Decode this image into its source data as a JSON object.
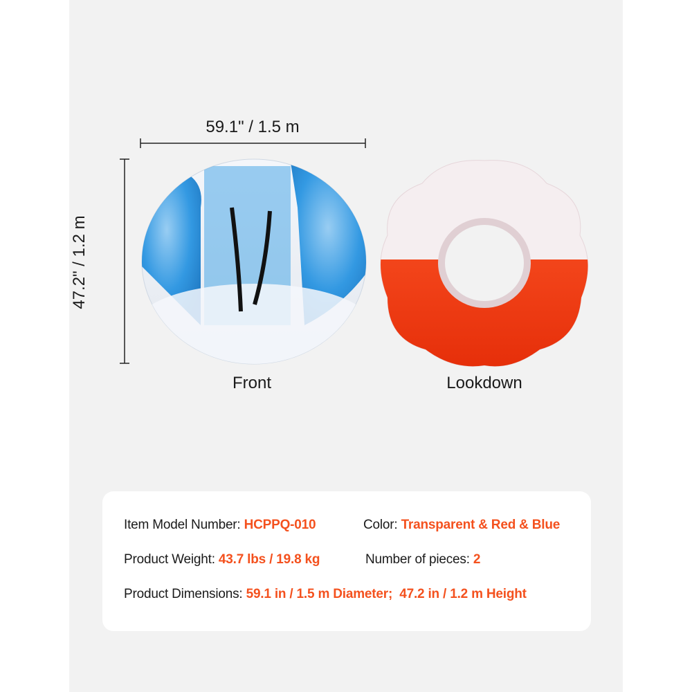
{
  "dimensions": {
    "width_label": "59.1\" / 1.5 m",
    "height_label": "47.2\" / 1.2 m"
  },
  "views": [
    {
      "caption": "Front"
    },
    {
      "caption": "Lookdown"
    }
  ],
  "colors": {
    "accent": "#f4511e",
    "blue": "#1e8fe0",
    "red": "#f23a10",
    "background": "#f2f2f2"
  },
  "specs": {
    "model_label": "Item Model Number: ",
    "model_value": "HCPPQ-010",
    "color_label": "Color: ",
    "color_value": "Transparent & Red & Blue",
    "weight_label": "Product Weight: ",
    "weight_value": "43.7 lbs / 19.8 kg",
    "pieces_label": "Number of pieces: ",
    "pieces_value": "2",
    "dims_label": "Product Dimensions: ",
    "dims_value": "59.1 in / 1.5 m Diameter;  47.2 in / 1.2 m Height"
  }
}
